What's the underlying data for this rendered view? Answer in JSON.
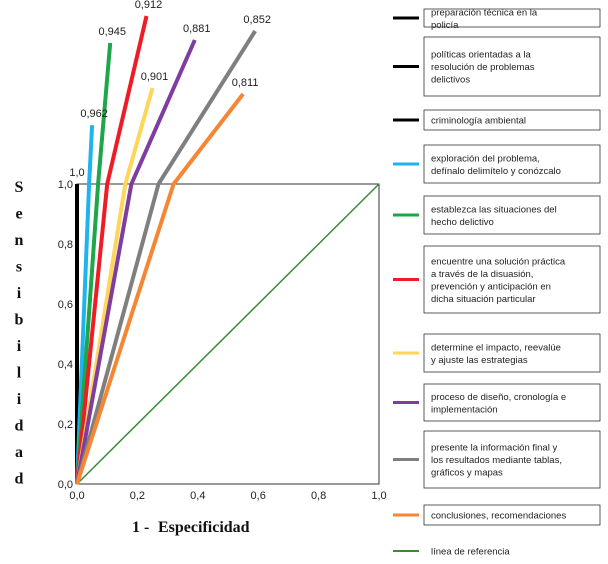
{
  "chart_data": {
    "type": "line",
    "ylabel": "Sensibilidad",
    "xlabel_prefix": "1 -",
    "xlabel_main": "Especificidad",
    "xlim": [
      0,
      1
    ],
    "ylim": [
      0,
      1
    ],
    "x_ticks": [
      "0,0",
      "0,2",
      "0,4",
      "0,6",
      "0,8",
      "1,0"
    ],
    "y_ticks": [
      "0,0",
      "0,2",
      "0,4",
      "0,6",
      "0,8",
      "1,0"
    ],
    "series": [
      {
        "name": "preparación técnica en la policía",
        "color": "#000000",
        "label": "",
        "points": [
          [
            0,
            0
          ],
          [
            0,
            1
          ]
        ]
      },
      {
        "name": "políticas orientadas a la resolución de problemas delictivos",
        "color": "#000000",
        "label": "",
        "points": [
          [
            0,
            0
          ],
          [
            0,
            1
          ]
        ]
      },
      {
        "name": "criminología ambiental",
        "color": "#000000",
        "label": "1,0",
        "points": [
          [
            0,
            0
          ],
          [
            0,
            1
          ]
        ]
      },
      {
        "name": "exploración del problema, defínalo delimítelo y conózcalo",
        "color": "#1EB4EE",
        "label": "0,962",
        "points": [
          [
            0,
            0
          ],
          [
            0.04,
            1
          ],
          [
            0.05,
            1.196
          ]
        ]
      },
      {
        "name": "establezca las situaciones del hecho delictivo",
        "color": "#1DA64A",
        "label": "0,945",
        "points": [
          [
            0,
            0
          ],
          [
            0.07,
            1
          ],
          [
            0.11,
            1.47
          ]
        ]
      },
      {
        "name": "encuentre una solución práctica a través de la disuasión, prevención y anticipación en dicha situación particular",
        "color": "#EE1C25",
        "label": "0,912",
        "points": [
          [
            0,
            0
          ],
          [
            0.1,
            1
          ],
          [
            0.23,
            1.56
          ]
        ]
      },
      {
        "name": "determine el impacto, reevalúe y ajuste las estrategias",
        "color": "#FFD55A",
        "label": "0,901",
        "points": [
          [
            0,
            0
          ],
          [
            0.16,
            1
          ],
          [
            0.25,
            1.32
          ]
        ]
      },
      {
        "name": "proceso de diseño, cronología e implementación",
        "color": "#7F3DA0",
        "label": "0,881",
        "points": [
          [
            0,
            0
          ],
          [
            0.18,
            1
          ],
          [
            0.39,
            1.48
          ]
        ]
      },
      {
        "name": "presente la información final y los resultados mediante tablas, gráficos y mapas",
        "color": "#7F7F7F",
        "label": "0,852",
        "points": [
          [
            0,
            0
          ],
          [
            0.27,
            1
          ],
          [
            0.59,
            1.51
          ]
        ]
      },
      {
        "name": "conclusiones, recomendaciones",
        "color": "#F58634",
        "label": "0,811",
        "points": [
          [
            0,
            0
          ],
          [
            0.32,
            1
          ],
          [
            0.55,
            1.3
          ]
        ]
      },
      {
        "name": "línea de referencia",
        "color": "#3A8A3A",
        "label": "",
        "points": [
          [
            0,
            0
          ],
          [
            1,
            1
          ]
        ]
      }
    ]
  }
}
